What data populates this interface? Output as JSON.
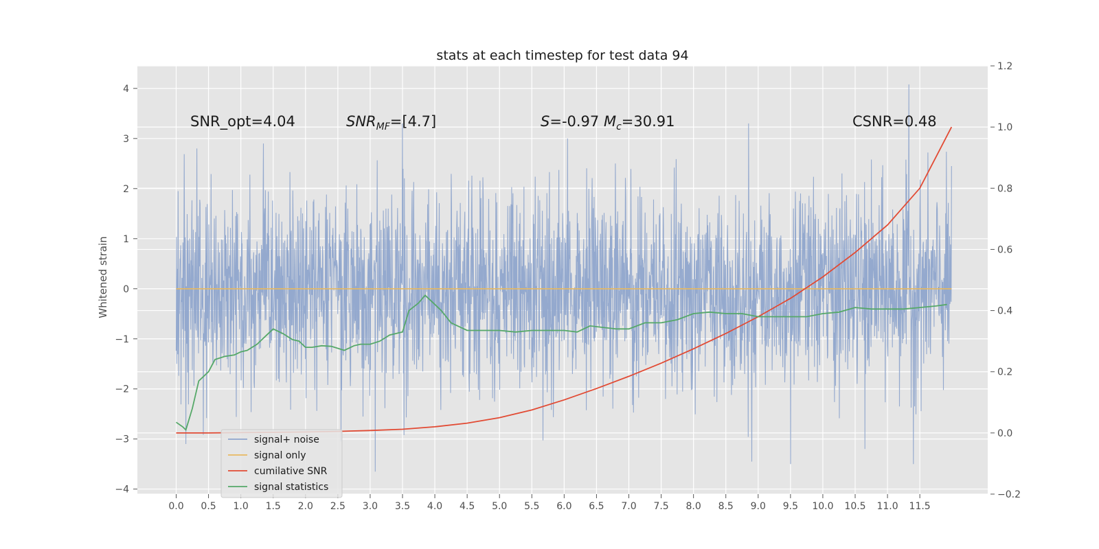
{
  "chart_data": {
    "type": "line",
    "title": "stats at each timestep for test data 94",
    "ylabel": "Whitened strain",
    "xlabel": "",
    "xlim": [
      -0.6,
      12.55
    ],
    "ylim": [
      -4.1,
      4.45
    ],
    "y2lim": [
      -0.2,
      1.2
    ],
    "x_ticks": [
      "0.0",
      "0.5",
      "1.0",
      "1.5",
      "2.0",
      "2.5",
      "3.0",
      "3.5",
      "4.0",
      "4.5",
      "5.0",
      "5.5",
      "6.0",
      "6.5",
      "7.0",
      "7.5",
      "8.0",
      "8.5",
      "9.0",
      "9.5",
      "10.0",
      "10.5",
      "11.0",
      "11.5"
    ],
    "y_ticks": [
      "4",
      "3",
      "2",
      "1",
      "0",
      "−1",
      "−2",
      "−3",
      "−4"
    ],
    "y2_ticks": [
      "1.2",
      "1.0",
      "0.8",
      "0.6",
      "0.4",
      "0.2",
      "0.0",
      "−0.2"
    ],
    "grid": true,
    "legend_position": "lower-left",
    "annotations": [
      {
        "text": "SNR_opt=4.04"
      },
      {
        "text": "SNR",
        "italic": true,
        "sub": "MF",
        "rest": "=[4.7]"
      },
      {
        "text": "S",
        "italic": true,
        "rest": "=-0.97  ",
        "text2": "M",
        "sub2": "c",
        "rest2": "=30.91"
      },
      {
        "text": "CSNR=0.48"
      }
    ],
    "series": [
      {
        "name": "signal+ noise",
        "color": "#8fa5cc",
        "axis": "left",
        "note": "dense noise trace spanning x 0.0 to 11.99, values roughly -3.6 to 4.1",
        "peaks": [
          [
            0.03,
            1.95
          ],
          [
            0.32,
            2.8
          ],
          [
            1.35,
            2.9
          ],
          [
            3.5,
            3.3
          ],
          [
            6.05,
            3.0
          ],
          [
            8.85,
            3.3
          ],
          [
            11.33,
            4.08
          ],
          [
            11.99,
            2.45
          ]
        ],
        "troughs": [
          [
            0.15,
            -3.1
          ],
          [
            2.55,
            -3.05
          ],
          [
            3.08,
            -3.65
          ],
          [
            6.0,
            -1.0
          ],
          [
            8.9,
            -3.45
          ],
          [
            9.5,
            -3.5
          ],
          [
            10.65,
            -3.2
          ],
          [
            11.4,
            -3.5
          ]
        ]
      },
      {
        "name": "signal only",
        "color": "#e8b960",
        "axis": "left",
        "x": [
          0.0,
          11.99
        ],
        "y": [
          0.0,
          0.0
        ]
      },
      {
        "name": "cumilative SNR",
        "color": "#e24a33",
        "axis": "right",
        "x": [
          0.0,
          0.5,
          1.0,
          1.5,
          2.0,
          2.5,
          3.0,
          3.5,
          4.0,
          4.5,
          5.0,
          5.5,
          6.0,
          6.5,
          7.0,
          7.5,
          8.0,
          8.5,
          9.0,
          9.5,
          10.0,
          10.5,
          11.0,
          11.5,
          11.99
        ],
        "y": [
          0.0,
          0.0,
          0.001,
          0.002,
          0.003,
          0.005,
          0.008,
          0.012,
          0.02,
          0.032,
          0.05,
          0.075,
          0.108,
          0.145,
          0.185,
          0.228,
          0.275,
          0.325,
          0.38,
          0.44,
          0.51,
          0.59,
          0.68,
          0.8,
          1.0
        ]
      },
      {
        "name": "signal statistics",
        "color": "#55a868",
        "axis": "right",
        "x": [
          0.0,
          0.1,
          0.15,
          0.25,
          0.35,
          0.5,
          0.6,
          0.75,
          0.9,
          1.0,
          1.1,
          1.25,
          1.4,
          1.5,
          1.65,
          1.8,
          1.9,
          2.0,
          2.1,
          2.25,
          2.4,
          2.6,
          2.75,
          2.85,
          3.0,
          3.15,
          3.3,
          3.5,
          3.6,
          3.75,
          3.85,
          3.95,
          4.1,
          4.25,
          4.5,
          4.75,
          5.0,
          5.25,
          5.5,
          5.75,
          6.0,
          6.2,
          6.4,
          6.6,
          6.8,
          7.0,
          7.25,
          7.5,
          7.75,
          8.0,
          8.25,
          8.5,
          8.75,
          9.0,
          9.25,
          9.5,
          9.75,
          10.0,
          10.25,
          10.5,
          10.75,
          11.0,
          11.25,
          11.5,
          11.75,
          11.92
        ],
        "y": [
          0.035,
          0.02,
          0.01,
          0.08,
          0.17,
          0.2,
          0.24,
          0.25,
          0.255,
          0.265,
          0.27,
          0.29,
          0.32,
          0.34,
          0.325,
          0.305,
          0.3,
          0.28,
          0.28,
          0.285,
          0.283,
          0.27,
          0.285,
          0.29,
          0.29,
          0.3,
          0.32,
          0.33,
          0.4,
          0.425,
          0.45,
          0.43,
          0.4,
          0.36,
          0.335,
          0.335,
          0.335,
          0.33,
          0.335,
          0.335,
          0.335,
          0.33,
          0.35,
          0.345,
          0.34,
          0.34,
          0.36,
          0.36,
          0.37,
          0.39,
          0.395,
          0.39,
          0.39,
          0.38,
          0.38,
          0.38,
          0.38,
          0.39,
          0.395,
          0.41,
          0.405,
          0.405,
          0.405,
          0.41,
          0.415,
          0.42
        ]
      }
    ]
  }
}
